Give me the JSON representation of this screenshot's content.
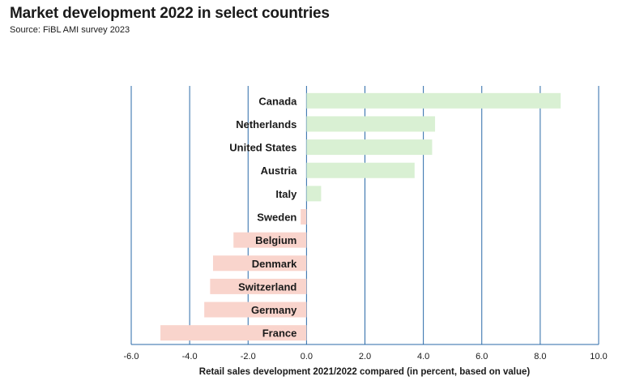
{
  "chart_data": {
    "type": "bar",
    "orientation": "horizontal",
    "title": "Market development 2022 in select countries",
    "subtitle": "Source: FiBL AMI survey 2023",
    "xlabel": "Retail sales development 2021/2022 compared (in percent, based on value)",
    "categories": [
      "Canada",
      "Netherlands",
      "United States",
      "Austria",
      "Italy",
      "Sweden",
      "Belgium",
      "Denmark",
      "Switzerland",
      "Germany",
      "France"
    ],
    "values": [
      8.7,
      4.4,
      4.3,
      3.7,
      0.5,
      -0.2,
      -2.5,
      -3.2,
      -3.3,
      -3.5,
      -5.0
    ],
    "xlim": [
      -6.0,
      10.0
    ],
    "xticks": [
      "-6.0",
      "-4.0",
      "-2.0",
      "0.0",
      "2.0",
      "4.0",
      "6.0",
      "8.0",
      "10.0"
    ],
    "grid": "vertical",
    "colors": {
      "positive": "#d9f0d3",
      "negative": "#f9d4cc",
      "grid": "#2a6aa8"
    }
  }
}
